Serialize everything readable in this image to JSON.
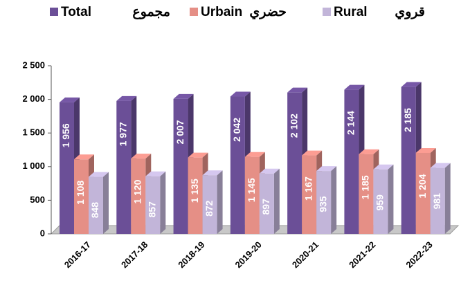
{
  "chart_data": {
    "type": "bar3d",
    "categories": [
      "2016-17",
      "2017-18",
      "2018-19",
      "2019-20",
      "2020-21",
      "2021-22",
      "2022-23"
    ],
    "series": [
      {
        "name": "Total",
        "name_ar": "مجموع",
        "color": "#6b4f97",
        "values": [
          1956,
          1977,
          2007,
          2042,
          2102,
          2144,
          2185
        ],
        "value_labels": [
          "1 956",
          "1 977",
          "2 007",
          "2 042",
          "2 102",
          "2 144",
          "2 185"
        ]
      },
      {
        "name": "Urbain",
        "name_ar": "حضري",
        "color": "#e58f86",
        "values": [
          1108,
          1120,
          1135,
          1145,
          1167,
          1185,
          1204
        ],
        "value_labels": [
          "1 108",
          "1 120",
          "1 135",
          "1 145",
          "1 167",
          "1 185",
          "1 204"
        ]
      },
      {
        "name": "Rural",
        "name_ar": "قروي",
        "color": "#c2b5d9",
        "values": [
          848,
          857,
          872,
          897,
          935,
          959,
          981
        ]
      }
    ],
    "ylim": [
      0,
      2500
    ],
    "yticks": [
      0,
      500,
      {
        "value": 1000,
        "label": "1 000"
      },
      {
        "value": 1500,
        "label": "1 500"
      },
      {
        "value": 2000,
        "label": "2 000"
      },
      {
        "value": 2500,
        "label": "2 500"
      }
    ],
    "legend": "top"
  }
}
